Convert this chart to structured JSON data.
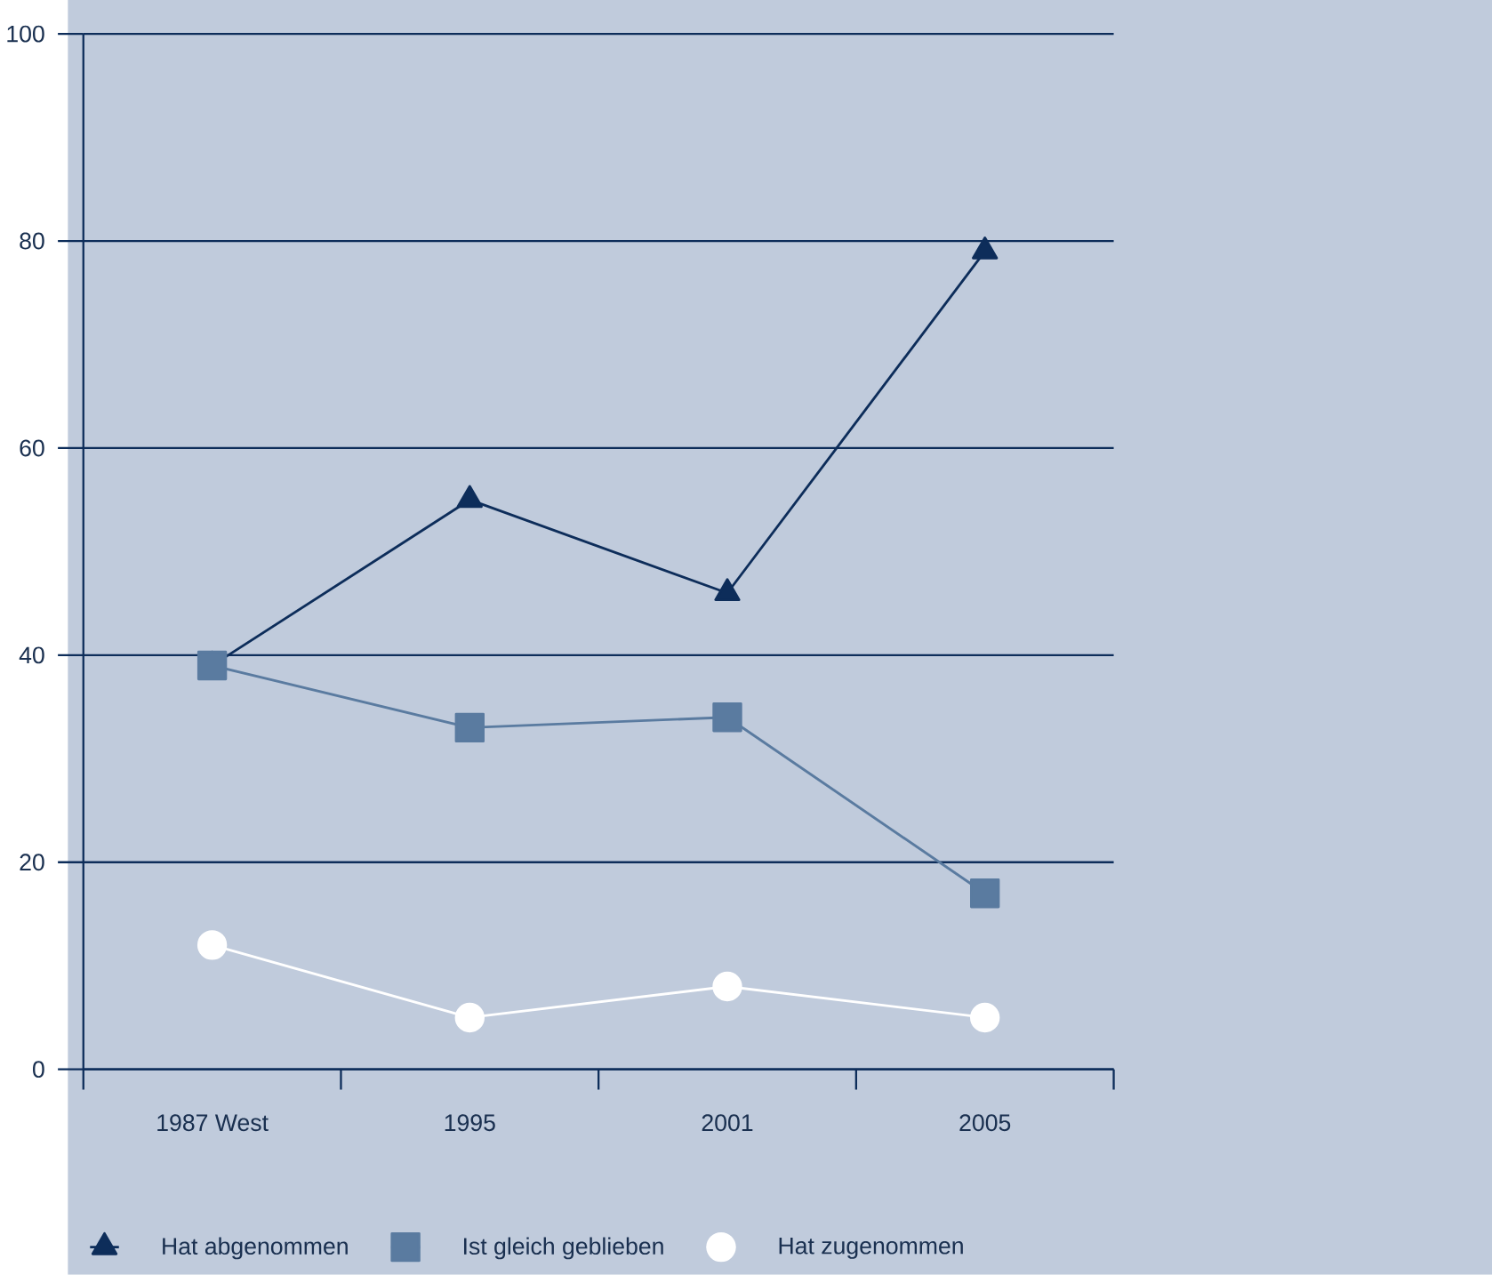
{
  "chart_data": {
    "type": "line",
    "categories": [
      "1987 West",
      "1995",
      "2001",
      "2005"
    ],
    "series": [
      {
        "name": "Hat abgenommen",
        "color": "#0d2d5a",
        "marker": "triangle",
        "values": [
          39,
          55,
          46,
          79
        ]
      },
      {
        "name": "Ist gleich geblieben",
        "color": "#5a7ba0",
        "marker": "square",
        "values": [
          39,
          33,
          34,
          17
        ]
      },
      {
        "name": "Hat zugenommen",
        "color": "#ffffff",
        "marker": "circle",
        "values": [
          12,
          5,
          8,
          5
        ]
      }
    ],
    "ylim": [
      0,
      100
    ],
    "yticks": [
      0,
      20,
      40,
      60,
      80,
      100
    ],
    "grid": "y",
    "legend": "bottom",
    "line_style": "solid"
  }
}
